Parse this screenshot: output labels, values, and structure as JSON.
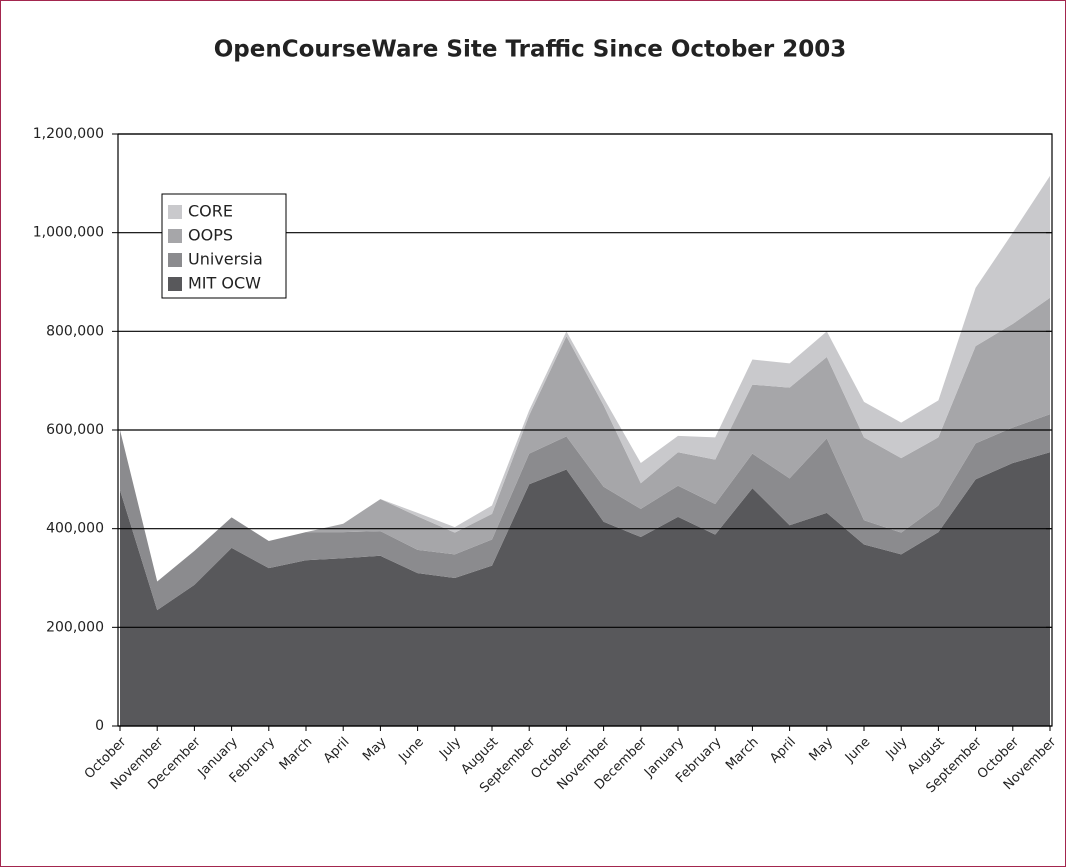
{
  "chart_data": {
    "type": "stacked-area",
    "title": "OpenCourseWare Site Traffic Since October 2003",
    "categories": [
      "October",
      "November",
      "December",
      "January",
      "February",
      "March",
      "April",
      "May",
      "June",
      "July",
      "August",
      "September",
      "October",
      "November",
      "December",
      "January",
      "February",
      "March",
      "April",
      "May",
      "June",
      "July",
      "August",
      "September",
      "October",
      "November"
    ],
    "series": [
      {
        "name": "MIT OCW",
        "color": "#58585b",
        "values": [
          478000,
          235000,
          286000,
          361000,
          320000,
          336000,
          340000,
          345000,
          310000,
          300000,
          325000,
          490000,
          520000,
          414000,
          383000,
          424000,
          388000,
          482000,
          407000,
          432000,
          368000,
          348000,
          393000,
          500000,
          533000,
          555000
        ]
      },
      {
        "name": "Universia",
        "color": "#8b8b8e",
        "values": [
          122000,
          58000,
          69000,
          62000,
          55000,
          57000,
          53000,
          50000,
          47000,
          48000,
          53000,
          62000,
          67000,
          71000,
          57000,
          63000,
          62000,
          70000,
          95000,
          151000,
          49000,
          44000,
          54000,
          73000,
          72000,
          77000
        ]
      },
      {
        "name": "OOPS",
        "color": "#a6a6a9",
        "values": [
          0,
          0,
          0,
          0,
          0,
          0,
          17000,
          65000,
          68000,
          44000,
          52000,
          78000,
          203000,
          165000,
          52000,
          68000,
          90000,
          140000,
          184000,
          165000,
          168000,
          151000,
          138000,
          197000,
          210000,
          236000
        ]
      },
      {
        "name": "CORE",
        "color": "#c9c9cc",
        "values": [
          0,
          0,
          0,
          0,
          0,
          0,
          0,
          0,
          7000,
          11000,
          17000,
          10000,
          10000,
          15000,
          41000,
          33000,
          45000,
          51000,
          49000,
          52000,
          72000,
          72000,
          75000,
          118000,
          185000,
          247000
        ]
      }
    ],
    "ylim": [
      0,
      1200000
    ],
    "yticks": [
      0,
      {
        "value": 200000,
        "label": "200,000"
      },
      {
        "value": 400000,
        "label": "400,000"
      },
      {
        "value": 600000,
        "label": "600,000"
      },
      {
        "value": 800000,
        "label": "800,000"
      },
      {
        "value": 1000000,
        "label": "1,000,000"
      },
      {
        "value": 1200000,
        "label": "1,200,000"
      }
    ],
    "grid": true,
    "legend": "upper left"
  }
}
